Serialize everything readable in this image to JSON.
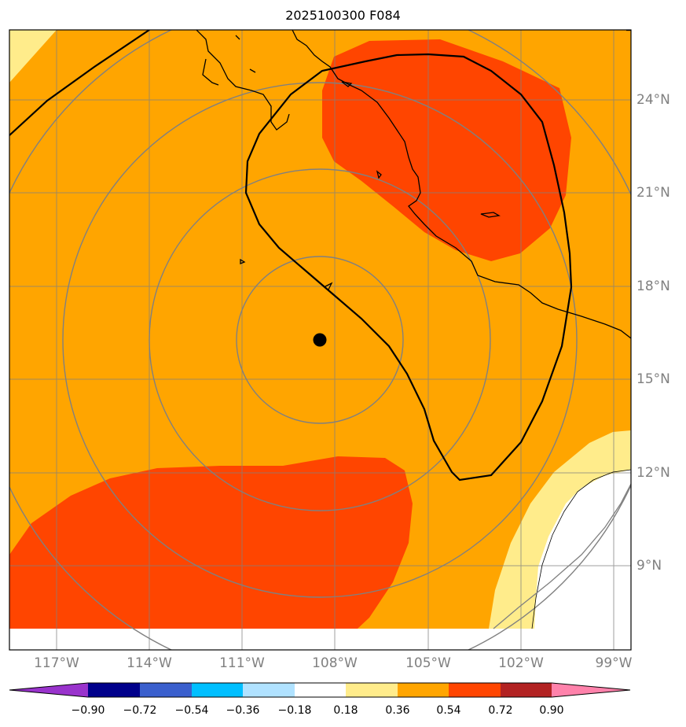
{
  "title": "2025100300 F084",
  "lat_labels": [
    "24°N",
    "21°N",
    "18°N",
    "15°N",
    "12°N",
    "9°N"
  ],
  "lon_labels": [
    "117°W",
    "114°W",
    "111°W",
    "108°W",
    "105°W",
    "102°W",
    "99°W"
  ],
  "colorbar": {
    "ticks": [
      "−0.90",
      "−0.72",
      "−0.54",
      "−0.36",
      "−0.18",
      "0.18",
      "0.36",
      "0.54",
      "0.72",
      "0.90"
    ],
    "colors": [
      "#9933cc",
      "#00008b",
      "#3a5fcd",
      "#00bfff",
      "#b0e2ff",
      "#ffffff",
      "#ffec8b",
      "#ffa500",
      "#ff4500",
      "#b22222",
      "#ff82ab"
    ]
  },
  "storm_center": {
    "lat": 16.2,
    "lon": -108.5
  },
  "range_rings": [
    "rings centered on storm position"
  ],
  "fill_colors": {
    "low": "#ffec8b",
    "mid": "#ffa500",
    "high": "#ff4500",
    "gridline": "#808080",
    "coast": "#000000"
  }
}
